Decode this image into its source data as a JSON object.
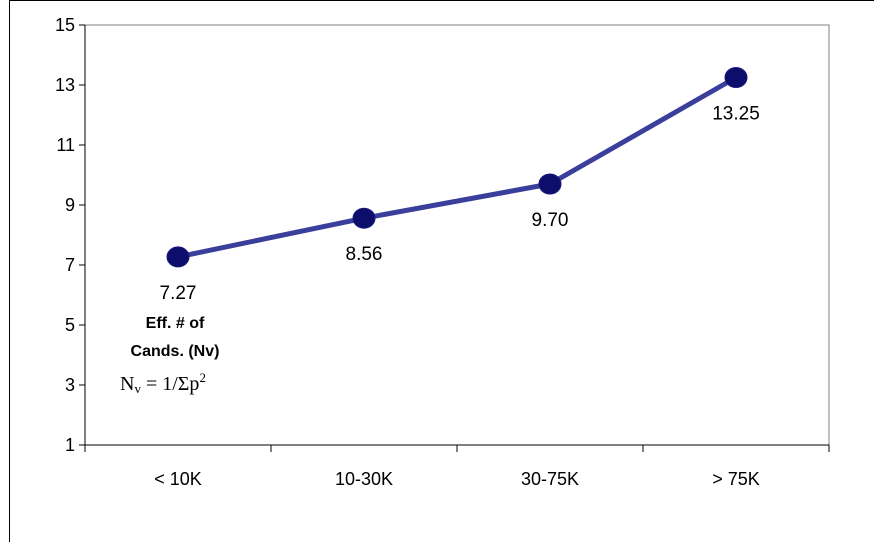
{
  "chart_data": {
    "type": "line",
    "title": "",
    "xlabel": "",
    "ylabel": "",
    "categories": [
      "< 10K",
      "10-30K",
      "30-75K",
      "> 75K"
    ],
    "series": [
      {
        "values": [
          7.27,
          8.56,
          9.7,
          13.25
        ],
        "color": "#3a3f9c"
      }
    ],
    "data_labels": [
      "7.27",
      "8.56",
      "9.70",
      "13.25"
    ],
    "ylim": [
      1,
      15
    ],
    "yticks": [
      "1",
      "3",
      "5",
      "7",
      "9",
      "11",
      "13",
      "15"
    ],
    "grid": false,
    "legend": "none",
    "marker_color": "#0d0d6b",
    "annotation": {
      "line1": "Eff. # of",
      "line2": "Cands. (Nv)",
      "formula_n": "N",
      "formula_sub": "v",
      "formula_mid": " = 1/Σp",
      "formula_sup": "2"
    }
  }
}
